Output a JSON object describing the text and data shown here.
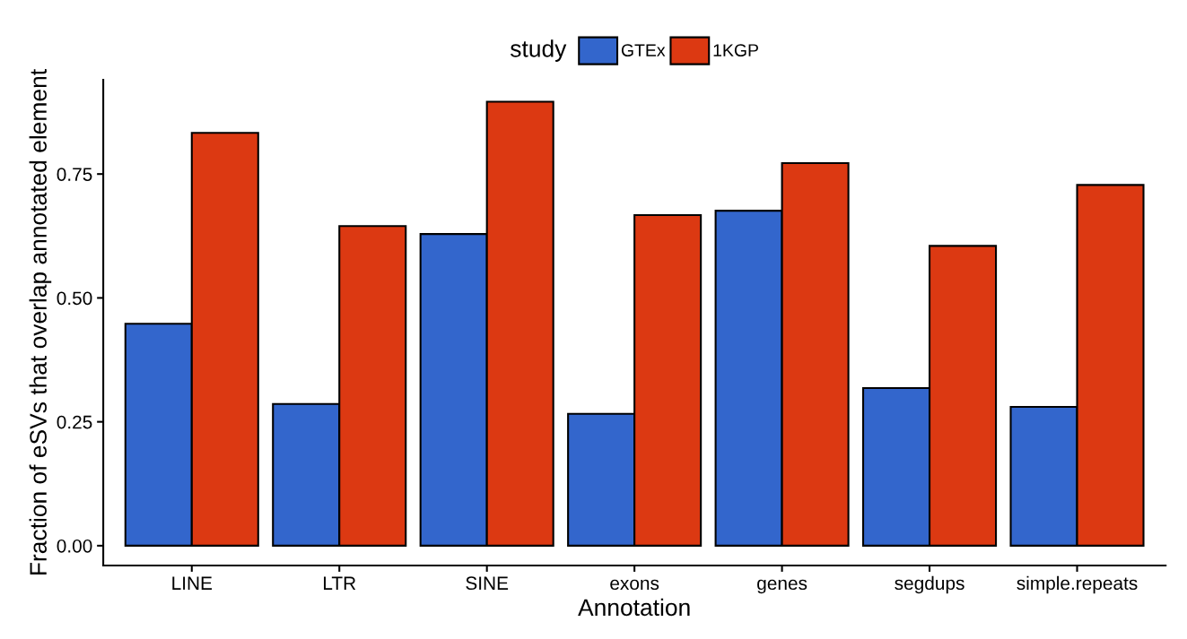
{
  "chart_data": {
    "type": "bar",
    "xlabel": "Annotation",
    "ylabel": "Fraction of eSVs that overlap annotated element",
    "legend_title": "study",
    "legend": "top",
    "categories": [
      "LINE",
      "LTR",
      "SINE",
      "exons",
      "genes",
      "segdups",
      "simple.repeats"
    ],
    "series": [
      {
        "name": "GTEx",
        "color": "#3366cc",
        "values": [
          0.448,
          0.286,
          0.629,
          0.266,
          0.676,
          0.318,
          0.28
        ]
      },
      {
        "name": "1KGP",
        "color": "#dc3912",
        "values": [
          0.833,
          0.645,
          0.896,
          0.667,
          0.772,
          0.605,
          0.728
        ]
      }
    ],
    "ylim": [
      -0.04,
      0.94
    ],
    "yticks": [
      {
        "value": 0,
        "label": "0.00"
      },
      {
        "value": 0.25,
        "label": "0.25"
      },
      {
        "value": 0.5,
        "label": "0.50"
      },
      {
        "value": 0.75,
        "label": "0.75"
      }
    ],
    "grid": false
  }
}
